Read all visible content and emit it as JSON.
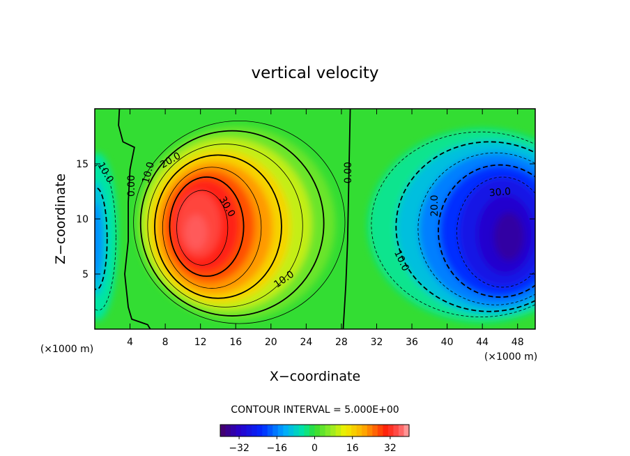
{
  "chart_data": {
    "type": "contour",
    "title": "vertical velocity",
    "xlabel": "X−coordinate",
    "ylabel": "Z−coordinate",
    "x_unit_left": "(×1000 m)",
    "x_unit_right": "(×1000 m)",
    "xlim": [
      0,
      50
    ],
    "ylim": [
      0,
      20
    ],
    "xticks": [
      {
        "value": 4,
        "label": "4"
      },
      {
        "value": 8,
        "label": "8"
      },
      {
        "value": 12,
        "label": "12"
      },
      {
        "value": 16,
        "label": "16"
      },
      {
        "value": 20,
        "label": "20"
      },
      {
        "value": 24,
        "label": "24"
      },
      {
        "value": 28,
        "label": "28"
      },
      {
        "value": 32,
        "label": "32"
      },
      {
        "value": 36,
        "label": "36"
      },
      {
        "value": 40,
        "label": "40"
      },
      {
        "value": 44,
        "label": "44"
      },
      {
        "value": 48,
        "label": "48"
      }
    ],
    "yticks": [
      {
        "value": 5,
        "label": "5"
      },
      {
        "value": 10,
        "label": "10"
      },
      {
        "value": 15,
        "label": "15"
      }
    ],
    "contour_interval_text": "CONTOUR INTERVAL = 5.000E+00",
    "contour_interval": 5,
    "field_range": [
      -36,
      36
    ],
    "colorbar": {
      "min": -40,
      "max": 40,
      "ticks": [
        {
          "value": -32,
          "label": "−32"
        },
        {
          "value": -16,
          "label": "−16"
        },
        {
          "value": 0,
          "label": "0"
        },
        {
          "value": 16,
          "label": "16"
        },
        {
          "value": 32,
          "label": "32"
        }
      ]
    },
    "features": [
      {
        "kind": "updraft",
        "x": 12,
        "z": 9,
        "peak": 36
      },
      {
        "kind": "downdraft",
        "x": 46,
        "z": 8.5,
        "peak": -36
      },
      {
        "kind": "downdraft",
        "x": 0.3,
        "z": 8,
        "peak": -15
      }
    ],
    "contour_labels": [
      {
        "text": "10.0",
        "x": 1.2,
        "z": 14.2,
        "angle": 60
      },
      {
        "text": "0.00",
        "x": 4.2,
        "z": 13.0,
        "angle": -90
      },
      {
        "text": "10.0",
        "x": 6.1,
        "z": 14.2,
        "angle": -75
      },
      {
        "text": "20.0",
        "x": 8.6,
        "z": 15.3,
        "angle": -30
      },
      {
        "text": "30.0",
        "x": 15.0,
        "z": 11.1,
        "angle": 60
      },
      {
        "text": "10.0",
        "x": 21.5,
        "z": 4.5,
        "angle": -35
      },
      {
        "text": "0.00",
        "x": 28.8,
        "z": 14.2,
        "angle": -90
      },
      {
        "text": "10.0",
        "x": 34.8,
        "z": 6.2,
        "angle": 65
      },
      {
        "text": "20.0",
        "x": 38.6,
        "z": 11.2,
        "angle": -90
      },
      {
        "text": "30.0",
        "x": 46.0,
        "z": 12.4,
        "angle": -5
      }
    ]
  }
}
